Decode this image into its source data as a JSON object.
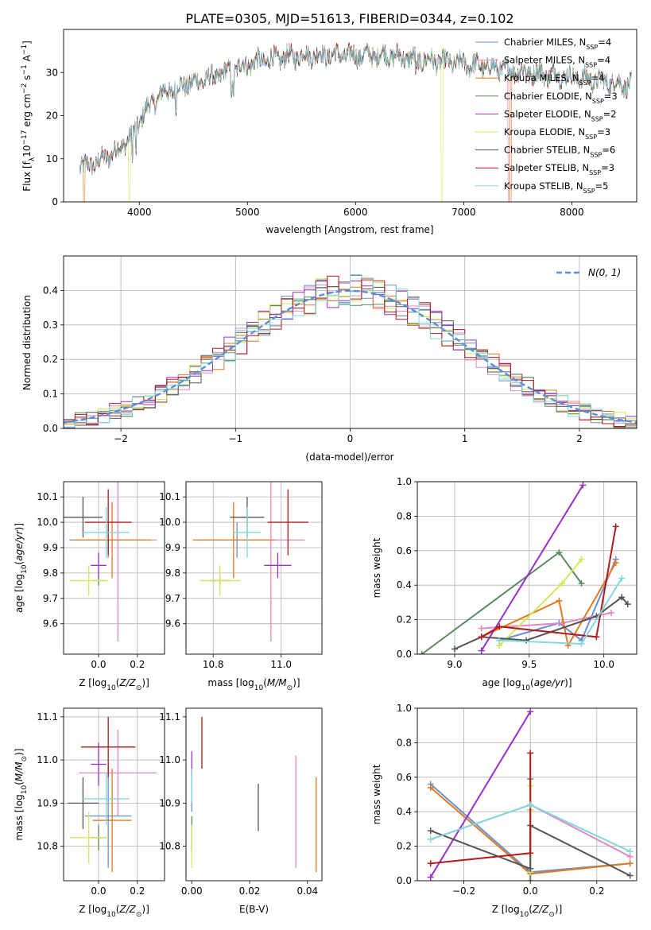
{
  "figure_title": "PLATE=0305, MJD=51613, FIBERID=0344, z=0.102",
  "colors": {
    "Chabrier MILES": "#6a8fcf",
    "Salpeter MILES": "#e387c4",
    "Kroupa MILES": "#e07a1f",
    "Chabrier ELODIE": "#5a8a62",
    "Salpeter ELODIE": "#9b30c8",
    "Kroupa ELODIE": "#cfe85a",
    "Chabrier STELIB": "#555555",
    "Salpeter STELIB": "#b01a1a",
    "Kroupa STELIB": "#7fd8dc",
    "normal": "#5b8fd6",
    "grid": "#b0b0b0"
  },
  "chart_data": [
    {
      "type": "line",
      "title": "PLATE=0305, MJD=51613, FIBERID=0344, z=0.102",
      "xlabel": "wavelength [Angstrom, rest frame]",
      "ylabel": "Flux [f_λ10^-17 erg cm^-2 s^-1 A^-1]",
      "xlim": [
        3300,
        8600
      ],
      "ylim": [
        0,
        40
      ],
      "xticks": [
        4000,
        5000,
        6000,
        7000,
        8000
      ],
      "yticks": [
        0,
        10,
        20,
        30
      ],
      "grid": false,
      "legend_position": "right",
      "legend": [
        {
          "model": "Chabrier MILES",
          "label": "Chabrier MILES, N",
          "sub": "SSP",
          "tail": "=4"
        },
        {
          "model": "Salpeter MILES",
          "label": "Salpeter MILES, N",
          "sub": "SSP",
          "tail": "=4"
        },
        {
          "model": "Kroupa MILES",
          "label": "Kroupa MILES, N",
          "sub": "SSP",
          "tail": "=4"
        },
        {
          "model": "Chabrier ELODIE",
          "label": "Chabrier ELODIE, N",
          "sub": "SSP",
          "tail": "=3"
        },
        {
          "model": "Salpeter ELODIE",
          "label": "Salpeter ELODIE, N",
          "sub": "SSP",
          "tail": "=2"
        },
        {
          "model": "Kroupa ELODIE",
          "label": "Kroupa ELODIE, N",
          "sub": "SSP",
          "tail": "=3"
        },
        {
          "model": "Chabrier STELIB",
          "label": "Chabrier STELIB, N",
          "sub": "SSP",
          "tail": "=6"
        },
        {
          "model": "Salpeter STELIB",
          "label": "Salpeter STELIB, N",
          "sub": "SSP",
          "tail": "=3"
        },
        {
          "model": "Kroupa STELIB",
          "label": "Kroupa STELIB, N",
          "sub": "SSP",
          "tail": "=5"
        }
      ],
      "continuum": {
        "x": [
          3450,
          3600,
          3800,
          3950,
          4050,
          4200,
          4400,
          4700,
          5000,
          5200,
          5500,
          5800,
          6000,
          6300,
          6600,
          7000,
          7300,
          7600,
          8000,
          8300,
          8550
        ],
        "y": [
          8,
          9,
          12,
          16,
          21,
          25,
          27,
          29,
          32,
          33,
          34,
          34,
          34,
          34,
          33,
          32,
          31,
          30,
          29,
          28,
          27
        ]
      },
      "dropouts": [
        {
          "model": "Kroupa ELODIE",
          "x": 3900,
          "x_end": 3920
        },
        {
          "model": "Kroupa ELODIE",
          "x": 6790,
          "x_end": 6810
        },
        {
          "model": "Kroupa MILES",
          "x": 3480,
          "x_end": 3500
        },
        {
          "model": "Kroupa MILES",
          "x": 7420,
          "x_end": 7440
        },
        {
          "model": "Salpeter MILES",
          "x": 7410,
          "x_end": 7430
        }
      ]
    },
    {
      "type": "histogram",
      "xlabel": "(data-model)/error",
      "ylabel": "Normed distribution",
      "xlim": [
        -2.5,
        2.5
      ],
      "ylim": [
        0,
        0.5
      ],
      "xticks": [
        -2,
        -1,
        0,
        1,
        2
      ],
      "yticks": [
        0.0,
        0.1,
        0.2,
        0.3,
        0.4
      ],
      "grid": true,
      "bin_width": 0.1,
      "normal_label": "N(0, 1)",
      "legend_position": "upper right"
    },
    {
      "type": "scatter",
      "subtype": "errorbar",
      "xlabel": "Z [log10(Z/Z⊙)]",
      "ylabel": "age [log10(age/yr)]",
      "xlim": [
        -0.18,
        0.34
      ],
      "ylim": [
        9.48,
        10.16
      ],
      "xticks": [
        0.0,
        0.2
      ],
      "yticks": [
        9.6,
        9.7,
        9.8,
        9.9,
        10.0,
        10.1
      ],
      "grid": true,
      "points": [
        {
          "model": "Chabrier MILES",
          "x": 0.05,
          "xerr": 0.2,
          "y": 9.93,
          "yerr": 0.07
        },
        {
          "model": "Salpeter MILES",
          "x": 0.1,
          "xerr": 0.2,
          "y": 9.93,
          "yerr": 0.4
        },
        {
          "model": "Kroupa MILES",
          "x": 0.07,
          "xerr": 0.2,
          "y": 9.93,
          "yerr": 0.15
        },
        {
          "model": "Chabrier ELODIE",
          "x": 0.0,
          "xerr": 0.03,
          "y": 9.77,
          "yerr": 0.02
        },
        {
          "model": "Salpeter ELODIE",
          "x": 0.0,
          "xerr": 0.04,
          "y": 9.83,
          "yerr": 0.05
        },
        {
          "model": "Kroupa ELODIE",
          "x": -0.05,
          "xerr": 0.1,
          "y": 9.77,
          "yerr": 0.06
        },
        {
          "model": "Chabrier STELIB",
          "x": -0.08,
          "xerr": 0.1,
          "y": 10.02,
          "yerr": 0.08
        },
        {
          "model": "Salpeter STELIB",
          "x": 0.05,
          "xerr": 0.12,
          "y": 10.0,
          "yerr": 0.13
        },
        {
          "model": "Kroupa STELIB",
          "x": 0.04,
          "xerr": 0.12,
          "y": 9.96,
          "yerr": 0.1
        }
      ]
    },
    {
      "type": "scatter",
      "subtype": "errorbar",
      "xlabel": "mass [log10(M/M⊙)]",
      "ylabel": "",
      "xlim": [
        10.72,
        11.12
      ],
      "ylim": [
        9.48,
        10.16
      ],
      "xticks": [
        10.8,
        11.0
      ],
      "yticks": [
        9.6,
        9.7,
        9.8,
        9.9,
        10.0,
        10.1
      ],
      "grid": true,
      "points": [
        {
          "model": "Chabrier MILES",
          "x": 10.87,
          "xerr": 0.12,
          "y": 9.93,
          "yerr": 0.07
        },
        {
          "model": "Salpeter MILES",
          "x": 10.97,
          "xerr": 0.1,
          "y": 9.93,
          "yerr": 0.4
        },
        {
          "model": "Kroupa MILES",
          "x": 10.86,
          "xerr": 0.12,
          "y": 9.93,
          "yerr": 0.15
        },
        {
          "model": "Chabrier ELODIE",
          "x": 10.82,
          "xerr": 0.03,
          "y": 9.77,
          "yerr": 0.02
        },
        {
          "model": "Salpeter ELODIE",
          "x": 10.99,
          "xerr": 0.04,
          "y": 9.83,
          "yerr": 0.05
        },
        {
          "model": "Kroupa ELODIE",
          "x": 10.82,
          "xerr": 0.06,
          "y": 9.77,
          "yerr": 0.06
        },
        {
          "model": "Chabrier STELIB",
          "x": 10.9,
          "xerr": 0.05,
          "y": 10.02,
          "yerr": 0.08
        },
        {
          "model": "Salpeter STELIB",
          "x": 11.02,
          "xerr": 0.06,
          "y": 10.0,
          "yerr": 0.13
        },
        {
          "model": "Kroupa STELIB",
          "x": 10.9,
          "xerr": 0.04,
          "y": 9.96,
          "yerr": 0.1
        }
      ]
    },
    {
      "type": "line",
      "xlabel": "age [log10(age/yr)]",
      "ylabel": "mass weight",
      "xlim": [
        8.75,
        10.22
      ],
      "ylim": [
        0.0,
        1.0
      ],
      "xticks": [
        9.0,
        9.5,
        10.0
      ],
      "yticks": [
        0.0,
        0.2,
        0.4,
        0.6,
        0.8,
        1.0
      ],
      "grid": true,
      "series": [
        {
          "model": "Chabrier MILES",
          "x": [
            9.3,
            9.7,
            9.85,
            10.08
          ],
          "y": [
            0.08,
            0.18,
            0.08,
            0.55
          ]
        },
        {
          "model": "Salpeter MILES",
          "x": [
            9.18,
            9.72,
            10.05
          ],
          "y": [
            0.15,
            0.18,
            0.24
          ]
        },
        {
          "model": "Kroupa MILES",
          "x": [
            9.18,
            9.7,
            9.76,
            10.08
          ],
          "y": [
            0.1,
            0.31,
            0.05,
            0.53
          ]
        },
        {
          "model": "Chabrier ELODIE",
          "x": [
            8.78,
            9.7,
            9.85
          ],
          "y": [
            0.0,
            0.59,
            0.41
          ]
        },
        {
          "model": "Salpeter ELODIE",
          "x": [
            9.18,
            9.86
          ],
          "y": [
            0.02,
            0.98
          ]
        },
        {
          "model": "Kroupa ELODIE",
          "x": [
            9.3,
            9.72,
            9.85
          ],
          "y": [
            0.05,
            0.41,
            0.55
          ]
        },
        {
          "model": "Chabrier STELIB",
          "x": [
            9.0,
            9.18,
            9.48,
            9.95,
            10.12,
            10.16
          ],
          "y": [
            0.03,
            0.1,
            0.08,
            0.22,
            0.33,
            0.29
          ]
        },
        {
          "model": "Salpeter STELIB",
          "x": [
            9.18,
            9.3,
            9.95,
            10.08
          ],
          "y": [
            0.1,
            0.16,
            0.1,
            0.74
          ]
        },
        {
          "model": "Kroupa STELIB",
          "x": [
            9.3,
            9.85,
            10.12
          ],
          "y": [
            0.08,
            0.06,
            0.44
          ]
        }
      ]
    },
    {
      "type": "scatter",
      "subtype": "errorbar",
      "xlabel": "Z [log10(Z/Z⊙)]",
      "ylabel": "mass [log10(M/M⊙)]",
      "xlim": [
        -0.18,
        0.34
      ],
      "ylim": [
        10.72,
        11.12
      ],
      "xticks": [
        0.0,
        0.2
      ],
      "yticks": [
        10.8,
        10.9,
        11.0,
        11.1
      ],
      "grid": true,
      "points": [
        {
          "model": "Chabrier MILES",
          "x": 0.05,
          "xerr": 0.12,
          "y": 10.87,
          "yerr": 0.12
        },
        {
          "model": "Salpeter MILES",
          "x": 0.1,
          "xerr": 0.2,
          "y": 10.97,
          "yerr": 0.1
        },
        {
          "model": "Kroupa MILES",
          "x": 0.07,
          "xerr": 0.1,
          "y": 10.86,
          "yerr": 0.12
        },
        {
          "model": "Chabrier ELODIE",
          "x": 0.0,
          "xerr": 0.04,
          "y": 10.82,
          "yerr": 0.03
        },
        {
          "model": "Salpeter ELODIE",
          "x": 0.0,
          "xerr": 0.04,
          "y": 10.99,
          "yerr": 0.05
        },
        {
          "model": "Kroupa ELODIE",
          "x": -0.05,
          "xerr": 0.1,
          "y": 10.82,
          "yerr": 0.06
        },
        {
          "model": "Chabrier STELIB",
          "x": -0.08,
          "xerr": 0.08,
          "y": 10.9,
          "yerr": 0.06
        },
        {
          "model": "Salpeter STELIB",
          "x": 0.05,
          "xerr": 0.14,
          "y": 11.03,
          "yerr": 0.07
        },
        {
          "model": "Kroupa STELIB",
          "x": 0.04,
          "xerr": 0.12,
          "y": 10.91,
          "yerr": 0.06
        }
      ]
    },
    {
      "type": "scatter",
      "subtype": "errorbar",
      "xlabel": "E(B-V)",
      "ylabel": "",
      "xlim": [
        -0.002,
        0.045
      ],
      "ylim": [
        10.72,
        11.12
      ],
      "xticks": [
        0.0,
        0.02,
        0.04
      ],
      "yticks": [
        10.8,
        10.9,
        11.0,
        11.1
      ],
      "grid": false,
      "points": [
        {
          "model": "Chabrier MILES",
          "x": 0.0,
          "xerr": 0.0,
          "y": 10.93,
          "yerr": 0.05
        },
        {
          "model": "Salpeter MILES",
          "x": 0.036,
          "xerr": 0.0,
          "y": 10.88,
          "yerr": 0.13
        },
        {
          "model": "Kroupa MILES",
          "x": 0.043,
          "xerr": 0.0,
          "y": 10.85,
          "yerr": 0.11
        },
        {
          "model": "Chabrier ELODIE",
          "x": 0.0,
          "xerr": 0.0,
          "y": 10.83,
          "yerr": 0.04
        },
        {
          "model": "Salpeter ELODIE",
          "x": 0.0,
          "xerr": 0.0,
          "y": 10.99,
          "yerr": 0.03
        },
        {
          "model": "Kroupa ELODIE",
          "x": 0.0,
          "xerr": 0.0,
          "y": 10.8,
          "yerr": 0.05
        },
        {
          "model": "Chabrier STELIB",
          "x": 0.023,
          "xerr": 0.0,
          "y": 10.89,
          "yerr": 0.055
        },
        {
          "model": "Salpeter STELIB",
          "x": 0.0035,
          "xerr": 0.0,
          "y": 11.04,
          "yerr": 0.06
        },
        {
          "model": "Kroupa STELIB",
          "x": 0.0,
          "xerr": 0.0,
          "y": 10.94,
          "yerr": 0.04
        }
      ]
    },
    {
      "type": "line",
      "xlabel": "Z [log10(Z/Z⊙)]",
      "ylabel": "mass weight",
      "xlim": [
        -0.34,
        0.32
      ],
      "ylim": [
        0.0,
        1.0
      ],
      "xticks": [
        -0.2,
        0.0,
        0.2
      ],
      "yticks": [
        0.0,
        0.2,
        0.4,
        0.6,
        0.8,
        1.0
      ],
      "grid": true,
      "series": [
        {
          "model": "Chabrier MILES",
          "x": [
            -0.3,
            0.0,
            0.3
          ],
          "y": [
            0.56,
            0.05,
            0.1
          ]
        },
        {
          "model": "Salpeter MILES",
          "x": [
            -0.3,
            0.0,
            0.3
          ],
          "y": [
            0.24,
            0.44,
            0.14
          ]
        },
        {
          "model": "Kroupa MILES",
          "x": [
            -0.3,
            0.0,
            0.3
          ],
          "y": [
            0.54,
            0.04,
            0.1
          ]
        },
        {
          "model": "Chabrier ELODIE",
          "x": [
            0.0,
            0.0,
            0.0
          ],
          "y": [
            0.0,
            0.59,
            0.41
          ]
        },
        {
          "model": "Salpeter ELODIE",
          "x": [
            -0.3,
            0.0
          ],
          "y": [
            0.02,
            0.98
          ]
        },
        {
          "model": "Kroupa ELODIE",
          "x": [
            0.0,
            0.0,
            0.0
          ],
          "y": [
            0.05,
            0.41,
            0.55
          ]
        },
        {
          "model": "Chabrier STELIB",
          "x": [
            -0.3,
            0.0,
            0.0,
            0.3
          ],
          "y": [
            0.29,
            0.07,
            0.32,
            0.03
          ]
        },
        {
          "model": "Salpeter STELIB",
          "x": [
            -0.3,
            0.0,
            0.0
          ],
          "y": [
            0.1,
            0.16,
            0.74
          ]
        },
        {
          "model": "Kroupa STELIB",
          "x": [
            -0.3,
            0.0,
            0.3
          ],
          "y": [
            0.24,
            0.44,
            0.17
          ]
        }
      ]
    }
  ]
}
